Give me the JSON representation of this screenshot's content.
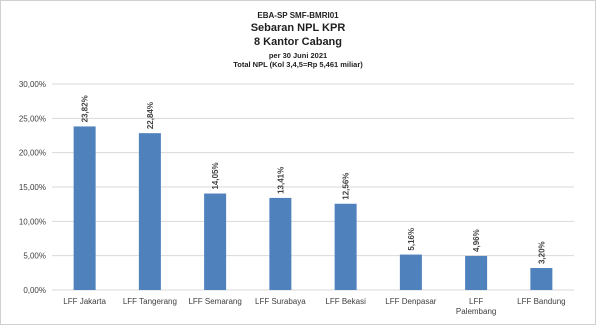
{
  "title": {
    "line1": "EBA-SP  SMF-BMRI01",
    "line2": "Sebaran NPL KPR",
    "line3": "8 Kantor Cabang",
    "line4": "per 30 Juni 2021",
    "line5": "Total NPL (Kol 3,4,5=Rp 5,461 miliar)"
  },
  "chart_data": {
    "type": "bar",
    "categories": [
      [
        "LFF Jakarta"
      ],
      [
        "LFF Tangerang"
      ],
      [
        "LFF Semarang"
      ],
      [
        "LFF Surabaya"
      ],
      [
        "LFF Bekasi"
      ],
      [
        "LFF Denpasar"
      ],
      [
        "LFF",
        "Palembang"
      ],
      [
        "LFF Bandung"
      ]
    ],
    "values": [
      23.82,
      22.84,
      14.05,
      13.41,
      12.56,
      5.16,
      4.96,
      3.2
    ],
    "data_labels": [
      "23,82%",
      "22,84%",
      "14,05%",
      "13,41%",
      "12,56%",
      "5,16%",
      "4,96%",
      "3,20%"
    ],
    "yticks": [
      0,
      5,
      10,
      15,
      20,
      25,
      30
    ],
    "ytick_labels": [
      "0,00%",
      "5,00%",
      "10,00%",
      "15,00%",
      "20,00%",
      "25,00%",
      "30,00%"
    ],
    "ylim": [
      0,
      30
    ],
    "grid": true,
    "legend": "none",
    "bar_color": "#4f81bd",
    "grid_color": "#d9d9d9",
    "xlabel": "",
    "ylabel": ""
  }
}
